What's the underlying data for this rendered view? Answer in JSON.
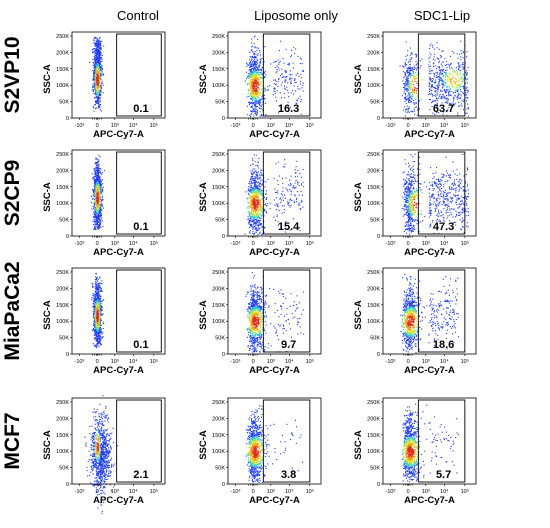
{
  "column_titles": [
    "Control",
    "Liposome only",
    "SDC1-Lip"
  ],
  "row_labels": [
    "S2VP10",
    "S2CP9",
    "MiaPaCa2",
    "MCF7"
  ],
  "colors": {
    "low_density": "#1f3cff",
    "mid_density": "#22c9d8",
    "high_density": "#f2e21b",
    "peak_density": "#e5281c",
    "axis": "#000000",
    "gate": "#000000"
  },
  "chart_data": {
    "type": "scatter",
    "layout": "4x3 flow cytometry density dot plot grid",
    "x_axis": {
      "label": "APC-Cy7-A",
      "scale": "biexponential",
      "ticks": [
        "-10³",
        "0",
        "10³",
        "10⁴",
        "10⁵"
      ]
    },
    "y_axis": {
      "label": "SSC-A",
      "range": [
        0,
        262144
      ],
      "ticks": [
        "0",
        "50K",
        "100K",
        "150K",
        "200K",
        "250K"
      ]
    },
    "gate": {
      "shape": "rectangle",
      "x_range": [
        "10³",
        "10⁵"
      ],
      "y_range": [
        0,
        250000
      ]
    },
    "panels": [
      {
        "row": "S2VP10",
        "column": "Control",
        "gate_percent": "0.1"
      },
      {
        "row": "S2VP10",
        "column": "Liposome only",
        "gate_percent": "16.3"
      },
      {
        "row": "S2VP10",
        "column": "SDC1-Lip",
        "gate_percent": "63.7"
      },
      {
        "row": "S2CP9",
        "column": "Control",
        "gate_percent": "0.1"
      },
      {
        "row": "S2CP9",
        "column": "Liposome only",
        "gate_percent": "15.4"
      },
      {
        "row": "S2CP9",
        "column": "SDC1-Lip",
        "gate_percent": "47.3"
      },
      {
        "row": "MiaPaCa2",
        "column": "Control",
        "gate_percent": "0.1"
      },
      {
        "row": "MiaPaCa2",
        "column": "Liposome only",
        "gate_percent": "9.7"
      },
      {
        "row": "MiaPaCa2",
        "column": "SDC1-Lip",
        "gate_percent": "18.6"
      },
      {
        "row": "MCF7",
        "column": "Control",
        "gate_percent": "2.1"
      },
      {
        "row": "MCF7",
        "column": "Liposome only",
        "gate_percent": "3.8"
      },
      {
        "row": "MCF7",
        "column": "SDC1-Lip",
        "gate_percent": "5.7"
      }
    ]
  }
}
